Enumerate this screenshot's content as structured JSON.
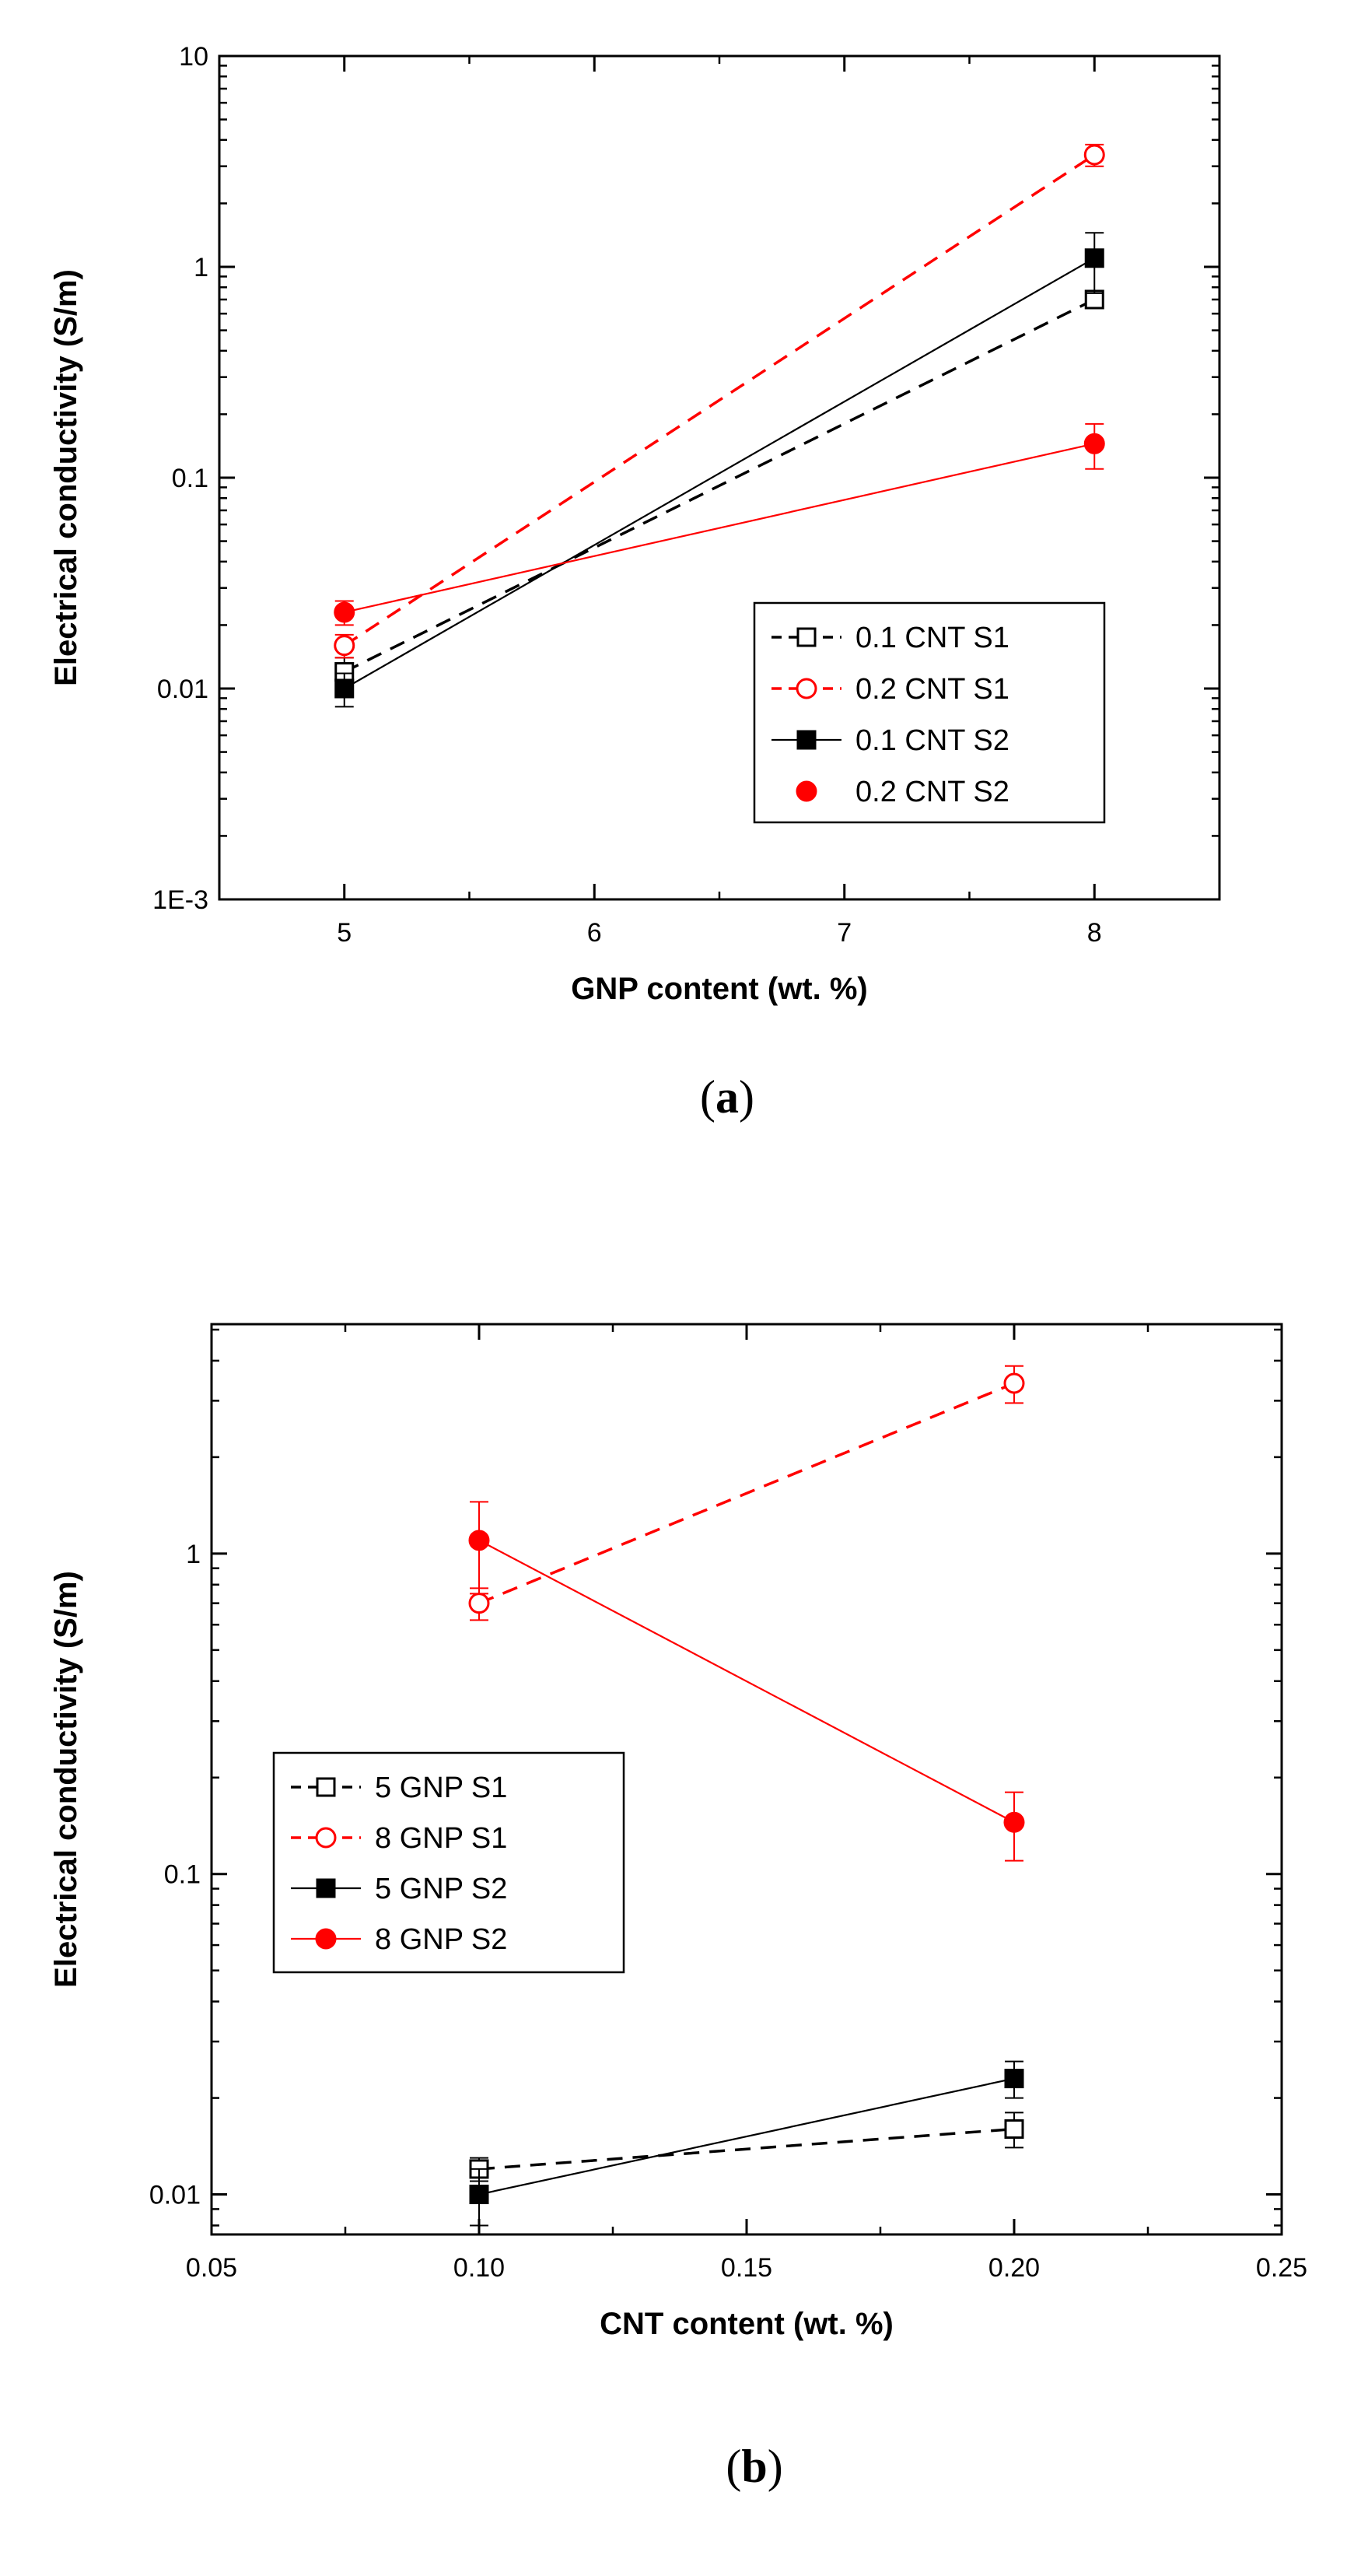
{
  "colors": {
    "black": "#000000",
    "red": "#ff0000",
    "background": "#ffffff"
  },
  "chart_data": [
    {
      "type": "line",
      "panel": "a",
      "caption_open": "(",
      "caption_letter": "a",
      "caption_close": ")",
      "title": "",
      "xlabel": "GNP content (wt. %)",
      "ylabel": "Electrical conductivity (S/m)",
      "xscale": "linear",
      "yscale": "log",
      "xlim": [
        4.5,
        8.5
      ],
      "ylim": [
        0.001,
        10
      ],
      "xticks": [
        5,
        6,
        7,
        8
      ],
      "xtick_labels": [
        "5",
        "6",
        "7",
        "8"
      ],
      "yticks": [
        0.001,
        0.01,
        0.1,
        1,
        10
      ],
      "ytick_labels": [
        "1E-3",
        "0.01",
        "0.1",
        "1",
        "10"
      ],
      "legend_position": "center-right",
      "series": [
        {
          "name": "0.1 CNT S1",
          "color": "#000000",
          "line": "dashed",
          "marker": "square-open",
          "x": [
            5,
            8
          ],
          "values": [
            0.012,
            0.7
          ],
          "err": [
            0.002,
            0.06
          ]
        },
        {
          "name": "0.2 CNT S1",
          "color": "#ff0000",
          "line": "dashed",
          "marker": "circle-open",
          "x": [
            5,
            8
          ],
          "values": [
            0.016,
            3.4
          ],
          "err": [
            0.002,
            0.4
          ]
        },
        {
          "name": "0.1 CNT S2",
          "color": "#000000",
          "line": "solid",
          "marker": "square-filled",
          "x": [
            5,
            8
          ],
          "values": [
            0.01,
            1.1
          ],
          "err": [
            0.0018,
            0.35
          ]
        },
        {
          "name": "0.2 CNT S2",
          "color": "#ff0000",
          "line": "solid",
          "marker": "circle-filled",
          "x": [
            5,
            8
          ],
          "values": [
            0.023,
            0.145
          ],
          "err": [
            0.003,
            0.035
          ]
        }
      ]
    },
    {
      "type": "line",
      "panel": "b",
      "caption_open": "(",
      "caption_letter": "b",
      "caption_close": ")",
      "title": "",
      "xlabel": "CNT content (wt. %)",
      "ylabel": "Electrical conductivity (S/m)",
      "xscale": "linear",
      "yscale": "log",
      "xlim": [
        0.05,
        0.25
      ],
      "ylim": [
        0.0075,
        5.2
      ],
      "xticks": [
        0.05,
        0.1,
        0.15,
        0.2,
        0.25
      ],
      "xtick_labels": [
        "0.05",
        "0.10",
        "0.15",
        "0.20",
        "0.25"
      ],
      "yticks": [
        0.01,
        0.1,
        1
      ],
      "ytick_labels": [
        "0.01",
        "0.1",
        "1"
      ],
      "legend_position": "center-left",
      "series": [
        {
          "name": "5 GNP S1",
          "color": "#000000",
          "line": "dashed",
          "marker": "square-open",
          "x": [
            0.1,
            0.2
          ],
          "values": [
            0.012,
            0.016
          ],
          "err": [
            0.001,
            0.002
          ]
        },
        {
          "name": "8 GNP S1",
          "color": "#ff0000",
          "line": "dashed",
          "marker": "circle-open",
          "x": [
            0.1,
            0.2
          ],
          "values": [
            0.7,
            3.4
          ],
          "err": [
            0.08,
            0.45
          ]
        },
        {
          "name": "5 GNP S2",
          "color": "#000000",
          "line": "solid",
          "marker": "square-filled",
          "x": [
            0.1,
            0.2
          ],
          "values": [
            0.01,
            0.023
          ],
          "err": [
            0.002,
            0.003
          ]
        },
        {
          "name": "8 GNP S2",
          "color": "#ff0000",
          "line": "solid",
          "marker": "circle-filled",
          "x": [
            0.1,
            0.2
          ],
          "values": [
            1.1,
            0.145
          ],
          "err": [
            0.35,
            0.035
          ]
        }
      ]
    }
  ]
}
